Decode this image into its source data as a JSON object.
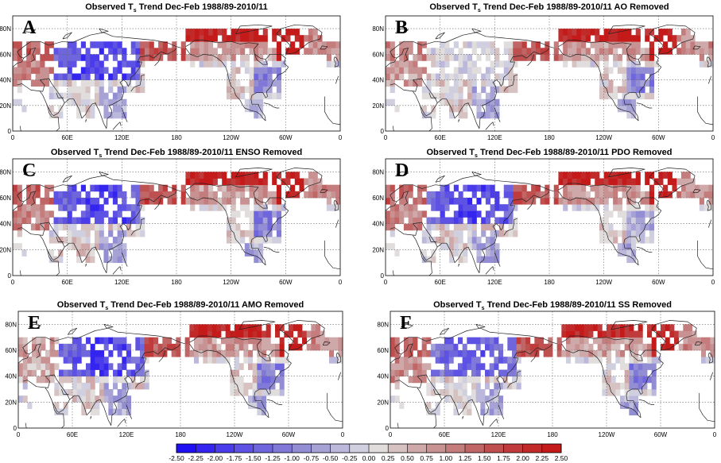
{
  "chart_data": {
    "type": "heatmap",
    "title_prefix": "Observed T",
    "title_subscript": "s",
    "title_base": " Trend Dec-Feb 1988/89-2010/11",
    "panels": [
      {
        "label": "A",
        "suffix": "",
        "variant": 0
      },
      {
        "label": "B",
        "suffix": " AO Removed",
        "variant": 1
      },
      {
        "label": "C",
        "suffix": " ENSO Removed",
        "variant": 2
      },
      {
        "label": "D",
        "suffix": " PDO Removed",
        "variant": 3
      },
      {
        "label": "E",
        "suffix": " AMO Removed",
        "variant": 4
      },
      {
        "label": "F",
        "suffix": " SS Removed",
        "variant": 5
      }
    ],
    "x_ticks": [
      "0",
      "60E",
      "120E",
      "180",
      "120W",
      "60W",
      "0"
    ],
    "y_ticks": [
      "0",
      "20N",
      "40N",
      "60N",
      "80N"
    ],
    "xlim_deg": [
      0,
      360
    ],
    "ylim_deg": [
      0,
      90
    ],
    "colorbar": {
      "labels": [
        "-2.50",
        "-2.25",
        "-2.00",
        "-1.75",
        "-1.50",
        "-1.25",
        "-1.00",
        "-0.75",
        "-0.50",
        "-0.25",
        "0.00",
        "0.25",
        "0.50",
        "0.75",
        "1.00",
        "1.25",
        "1.50",
        "1.75",
        "2.00",
        "2.25",
        "2.50"
      ],
      "colors": [
        "#1f0ff5",
        "#3424f0",
        "#4a3cea",
        "#5d52e3",
        "#6f66dd",
        "#8079d7",
        "#938dd4",
        "#a7a2d6",
        "#bbb8db",
        "#d0cfe0",
        "#e1dddd",
        "#d7c2c2",
        "#cfa9a9",
        "#c99292",
        "#c47c7c",
        "#c16666",
        "#bf5050",
        "#c03c3c",
        "#c22a2a",
        "#c51a1a"
      ]
    }
  }
}
